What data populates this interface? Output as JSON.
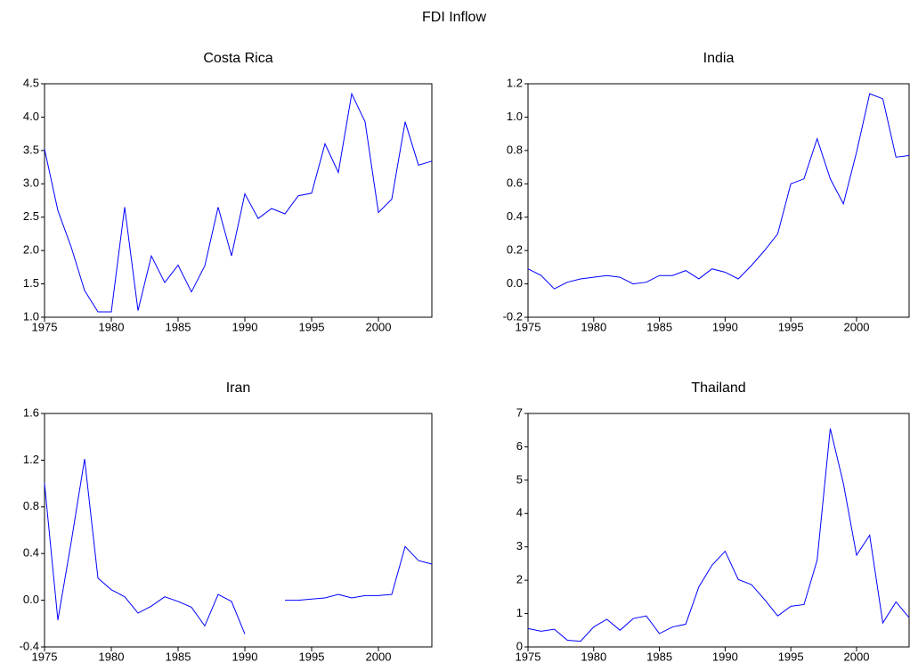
{
  "title": "FDI Inflow",
  "chart_data": [
    {
      "type": "line",
      "title": "Costa Rica",
      "color": "#0000ff",
      "x": [
        1975,
        1976,
        1977,
        1978,
        1979,
        1980,
        1981,
        1982,
        1983,
        1984,
        1985,
        1986,
        1987,
        1988,
        1989,
        1990,
        1991,
        1992,
        1993,
        1994,
        1995,
        1996,
        1997,
        1998,
        1999,
        2000,
        2001,
        2002,
        2003,
        2004
      ],
      "values": [
        3.52,
        2.6,
        2.05,
        1.4,
        1.08,
        1.08,
        2.65,
        1.1,
        1.92,
        1.52,
        1.78,
        1.38,
        1.77,
        2.65,
        1.92,
        2.85,
        2.48,
        2.63,
        2.55,
        2.82,
        2.86,
        3.6,
        3.17,
        4.35,
        3.93,
        2.57,
        2.77,
        3.93,
        3.28,
        3.34
      ],
      "xlim": [
        1975,
        2004
      ],
      "xticks": [
        1975,
        1980,
        1985,
        1990,
        1995,
        2000
      ],
      "ylim": [
        1.0,
        4.5
      ],
      "yticks": [
        {
          "value": 1,
          "label": "1.0"
        },
        1.5,
        {
          "value": 2,
          "label": "2.0"
        },
        2.5,
        {
          "value": 3,
          "label": "3.0"
        },
        3.5,
        {
          "value": 4,
          "label": "4.0"
        },
        4.5
      ]
    },
    {
      "type": "line",
      "title": "India",
      "color": "#0000ff",
      "x": [
        1975,
        1976,
        1977,
        1978,
        1979,
        1980,
        1981,
        1982,
        1983,
        1984,
        1985,
        1986,
        1987,
        1988,
        1989,
        1990,
        1991,
        1992,
        1993,
        1994,
        1995,
        1996,
        1997,
        1998,
        1999,
        2000,
        2001,
        2002,
        2003,
        2004
      ],
      "values": [
        0.09,
        0.05,
        -0.03,
        0.01,
        0.03,
        0.04,
        0.05,
        0.04,
        0.0,
        0.01,
        0.05,
        0.05,
        0.08,
        0.03,
        0.09,
        0.07,
        0.03,
        0.11,
        0.2,
        0.3,
        0.6,
        0.63,
        0.87,
        0.63,
        0.48,
        0.79,
        1.14,
        1.11,
        0.76,
        0.77
      ],
      "xlim": [
        1975,
        2004
      ],
      "xticks": [
        1975,
        1980,
        1985,
        1990,
        1995,
        2000
      ],
      "ylim": [
        -0.2,
        1.2
      ],
      "yticks": [
        -0.2,
        {
          "value": 0,
          "label": "0.0"
        },
        0.2,
        0.4,
        0.6,
        0.8,
        {
          "value": 1,
          "label": "1.0"
        },
        1.2
      ]
    },
    {
      "type": "line",
      "title": "Iran",
      "color": "#0000ff",
      "x": [
        1975,
        1976,
        1977,
        1978,
        1979,
        1980,
        1981,
        1982,
        1983,
        1984,
        1985,
        1986,
        1987,
        1988,
        1989,
        1990,
        1991,
        1992,
        1993,
        1994,
        1995,
        1996,
        1997,
        1998,
        1999,
        2000,
        2001,
        2002,
        2003,
        2004
      ],
      "values": [
        1.0,
        -0.17,
        0.5,
        1.21,
        0.19,
        0.09,
        0.03,
        -0.11,
        -0.05,
        0.03,
        -0.01,
        -0.06,
        -0.22,
        0.05,
        -0.01,
        -0.29,
        null,
        null,
        0.0,
        0.0,
        0.01,
        0.02,
        0.05,
        0.02,
        0.04,
        0.04,
        0.05,
        0.46,
        0.34,
        0.31
      ],
      "xlim": [
        1975,
        2004
      ],
      "xticks": [
        1975,
        1980,
        1985,
        1990,
        1995,
        2000
      ],
      "ylim": [
        -0.4,
        1.6
      ],
      "yticks": [
        -0.4,
        {
          "value": 0,
          "label": "0.0"
        },
        0.4,
        0.8,
        1.2,
        1.6
      ]
    },
    {
      "type": "line",
      "title": "Thailand",
      "color": "#0000ff",
      "x": [
        1975,
        1976,
        1977,
        1978,
        1979,
        1980,
        1981,
        1982,
        1983,
        1984,
        1985,
        1986,
        1987,
        1988,
        1989,
        1990,
        1991,
        1992,
        1993,
        1994,
        1995,
        1996,
        1997,
        1998,
        1999,
        2000,
        2001,
        2002,
        2003,
        2004
      ],
      "values": [
        0.55,
        0.47,
        0.53,
        0.2,
        0.17,
        0.6,
        0.83,
        0.5,
        0.85,
        0.93,
        0.4,
        0.6,
        0.68,
        1.8,
        2.45,
        2.87,
        2.02,
        1.87,
        1.42,
        0.93,
        1.22,
        1.27,
        2.6,
        6.55,
        4.9,
        2.75,
        3.35,
        0.72,
        1.35,
        0.88
      ],
      "xlim": [
        1975,
        2004
      ],
      "xticks": [
        1975,
        1980,
        1985,
        1990,
        1995,
        2000
      ],
      "ylim": [
        0,
        7
      ],
      "yticks": [
        0,
        1,
        2,
        3,
        4,
        5,
        6,
        7
      ]
    }
  ]
}
